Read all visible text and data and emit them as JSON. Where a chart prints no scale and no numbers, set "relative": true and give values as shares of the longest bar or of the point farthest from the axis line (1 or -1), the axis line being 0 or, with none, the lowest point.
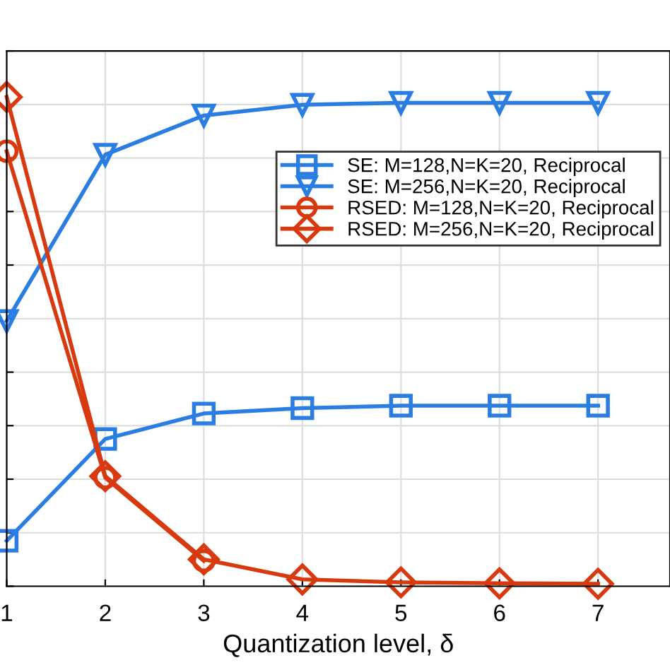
{
  "chart_data": {
    "type": "line",
    "xlabel": "Quantization level, δ",
    "x": [
      1,
      2,
      3,
      4,
      5,
      6,
      7
    ],
    "xlim": [
      1,
      7.73
    ],
    "xticks": [
      1,
      2,
      3,
      4,
      5,
      6,
      7
    ],
    "relative": true,
    "tick_labels": "x",
    "grid": true,
    "legend": "top right",
    "line_style": "solid",
    "series": [
      {
        "name": "SE: M=128,N=K=20, Reciprocal",
        "color": "#2a7de1",
        "marker": "square",
        "values": [
          0.093,
          0.301,
          0.353,
          0.364,
          0.369,
          0.369,
          0.369
        ]
      },
      {
        "name": "SE: M=256,N=K=20, Reciprocal",
        "color": "#2a7de1",
        "marker": "triangle",
        "values": [
          0.542,
          0.882,
          0.962,
          0.984,
          0.988,
          0.988,
          0.988
        ]
      },
      {
        "name": "RSED: M=128,N=K=20, Reciprocal",
        "color": "#d83a10",
        "marker": "circle",
        "values": [
          0.889,
          0.222,
          0.052,
          null,
          null,
          null,
          null
        ]
      },
      {
        "name": "RSED: M=256,N=K=20, Reciprocal",
        "color": "#d83a10",
        "marker": "diamond",
        "values": [
          1,
          0.225,
          0.055,
          0.014,
          0.008,
          0.006,
          0.005
        ]
      }
    ]
  }
}
